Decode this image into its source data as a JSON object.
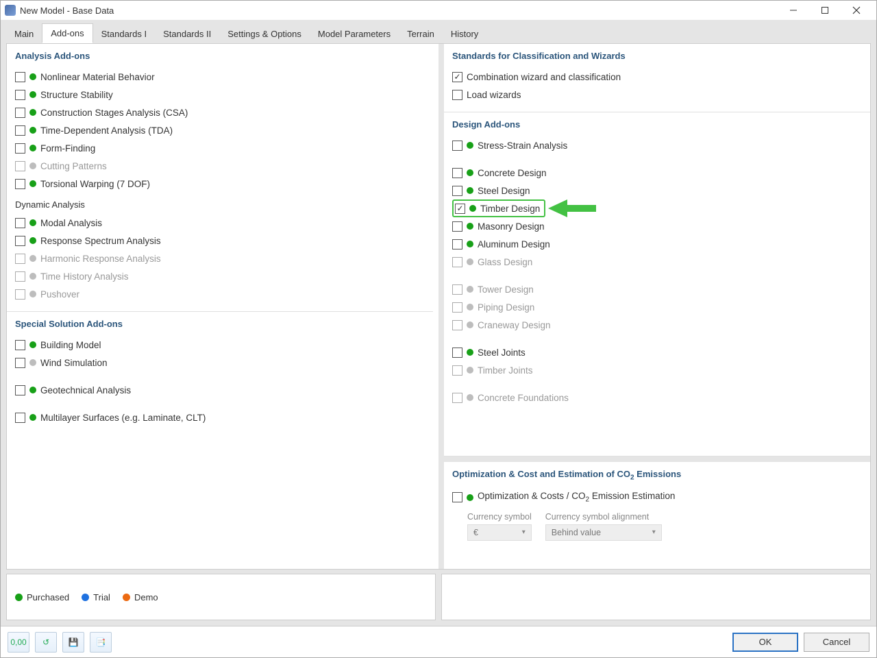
{
  "window": {
    "title": "New Model - Base Data"
  },
  "tabs": [
    "Main",
    "Add-ons",
    "Standards I",
    "Standards II",
    "Settings & Options",
    "Model Parameters",
    "Terrain",
    "History"
  ],
  "active_tab_index": 1,
  "colors": {
    "purchased": "#18a018",
    "trial": "#1f71e0",
    "demo": "#ec6a12",
    "disabled_dot": "#bdbdbd",
    "section_heading": "#2b557b",
    "highlight": "#43c143"
  },
  "left": {
    "analysis": {
      "heading": "Analysis Add-ons",
      "items": [
        {
          "label": "Nonlinear Material Behavior",
          "checked": false,
          "status": "purchased",
          "enabled": true
        },
        {
          "label": "Structure Stability",
          "checked": false,
          "status": "purchased",
          "enabled": true
        },
        {
          "label": "Construction Stages Analysis (CSA)",
          "checked": false,
          "status": "purchased",
          "enabled": true
        },
        {
          "label": "Time-Dependent Analysis (TDA)",
          "checked": false,
          "status": "purchased",
          "enabled": true
        },
        {
          "label": "Form-Finding",
          "checked": false,
          "status": "purchased",
          "enabled": true
        },
        {
          "label": "Cutting Patterns",
          "checked": false,
          "status": "disabled",
          "enabled": false
        },
        {
          "label": "Torsional Warping (7 DOF)",
          "checked": false,
          "status": "purchased",
          "enabled": true
        }
      ],
      "dynamic_heading": "Dynamic Analysis",
      "dynamic_items": [
        {
          "label": "Modal Analysis",
          "checked": false,
          "status": "purchased",
          "enabled": true
        },
        {
          "label": "Response Spectrum Analysis",
          "checked": false,
          "status": "purchased",
          "enabled": true
        },
        {
          "label": "Harmonic Response Analysis",
          "checked": false,
          "status": "disabled",
          "enabled": false
        },
        {
          "label": "Time History Analysis",
          "checked": false,
          "status": "disabled",
          "enabled": false
        },
        {
          "label": "Pushover",
          "checked": false,
          "status": "disabled",
          "enabled": false
        }
      ]
    },
    "special": {
      "heading": "Special Solution Add-ons",
      "items": [
        {
          "label": "Building Model",
          "checked": false,
          "status": "purchased",
          "enabled": true
        },
        {
          "label": "Wind Simulation",
          "checked": false,
          "status": "disabled",
          "enabled": true
        }
      ],
      "items2": [
        {
          "label": "Geotechnical Analysis",
          "checked": false,
          "status": "purchased",
          "enabled": true
        }
      ],
      "items3": [
        {
          "label": "Multilayer Surfaces (e.g. Laminate, CLT)",
          "checked": false,
          "status": "purchased",
          "enabled": true
        }
      ]
    }
  },
  "right": {
    "standards": {
      "heading": "Standards for Classification and Wizards",
      "items": [
        {
          "label": "Combination wizard and classification",
          "checked": true,
          "status": "none",
          "enabled": true
        },
        {
          "label": "Load wizards",
          "checked": false,
          "status": "none",
          "enabled": true
        }
      ]
    },
    "design": {
      "heading": "Design Add-ons",
      "g1": [
        {
          "label": "Stress-Strain Analysis",
          "checked": false,
          "status": "purchased",
          "enabled": true
        }
      ],
      "g2": [
        {
          "label": "Concrete Design",
          "checked": false,
          "status": "purchased",
          "enabled": true
        },
        {
          "label": "Steel Design",
          "checked": false,
          "status": "purchased",
          "enabled": true
        },
        {
          "label": "Timber Design",
          "checked": true,
          "status": "purchased",
          "enabled": true,
          "highlight": true
        },
        {
          "label": "Masonry Design",
          "checked": false,
          "status": "purchased",
          "enabled": true
        },
        {
          "label": "Aluminum Design",
          "checked": false,
          "status": "purchased",
          "enabled": true
        },
        {
          "label": "Glass Design",
          "checked": false,
          "status": "disabled",
          "enabled": false
        }
      ],
      "g3": [
        {
          "label": "Tower Design",
          "checked": false,
          "status": "disabled",
          "enabled": false
        },
        {
          "label": "Piping Design",
          "checked": false,
          "status": "disabled",
          "enabled": false
        },
        {
          "label": "Craneway Design",
          "checked": false,
          "status": "disabled",
          "enabled": false
        }
      ],
      "g4": [
        {
          "label": "Steel Joints",
          "checked": false,
          "status": "purchased",
          "enabled": true
        },
        {
          "label": "Timber Joints",
          "checked": false,
          "status": "disabled",
          "enabled": false
        }
      ],
      "g5": [
        {
          "label": "Concrete Foundations",
          "checked": false,
          "status": "disabled",
          "enabled": false
        }
      ]
    },
    "optimization": {
      "heading_prefix": "Optimization & Cost and Estimation of CO",
      "heading_suffix": " Emissions",
      "item": {
        "label_prefix": "Optimization & Costs / CO",
        "label_suffix": " Emission Estimation",
        "checked": false,
        "status": "purchased",
        "enabled": true
      },
      "currency_label": "Currency symbol",
      "currency_value": "€",
      "align_label": "Currency symbol alignment",
      "align_value": "Behind value"
    }
  },
  "legend": [
    {
      "label": "Purchased",
      "color": "#18a018"
    },
    {
      "label": "Trial",
      "color": "#1f71e0"
    },
    {
      "label": "Demo",
      "color": "#ec6a12"
    }
  ],
  "footer": {
    "ok": "OK",
    "cancel": "Cancel",
    "icons": [
      "0,00",
      "↺",
      "💾",
      "📑"
    ]
  }
}
